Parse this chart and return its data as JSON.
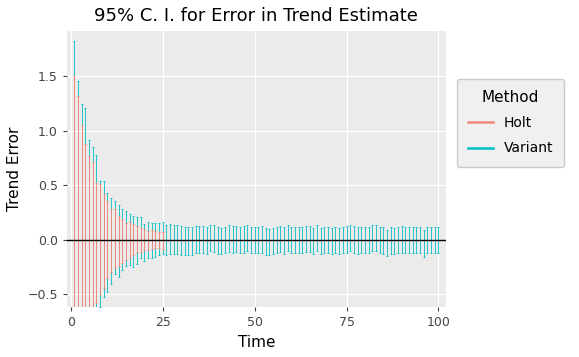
{
  "title": "95% C. I. for Error in Trend Estimate",
  "xlabel": "Time",
  "ylabel": "Trend Error",
  "xlim": [
    -1,
    102
  ],
  "ylim": [
    -0.62,
    1.92
  ],
  "yticks": [
    -0.5,
    0.0,
    0.5,
    1.0,
    1.5
  ],
  "xticks": [
    0,
    25,
    50,
    75,
    100
  ],
  "holt_color": "#F4877A",
  "variant_color": "#00BEC4",
  "plot_bg": "#EBEBEB",
  "fig_bg": "#FFFFFF",
  "grid_color": "#FFFFFF",
  "n_points": 100,
  "holt_n_visible": 25,
  "figsize": [
    5.79,
    3.57
  ],
  "dpi": 100
}
